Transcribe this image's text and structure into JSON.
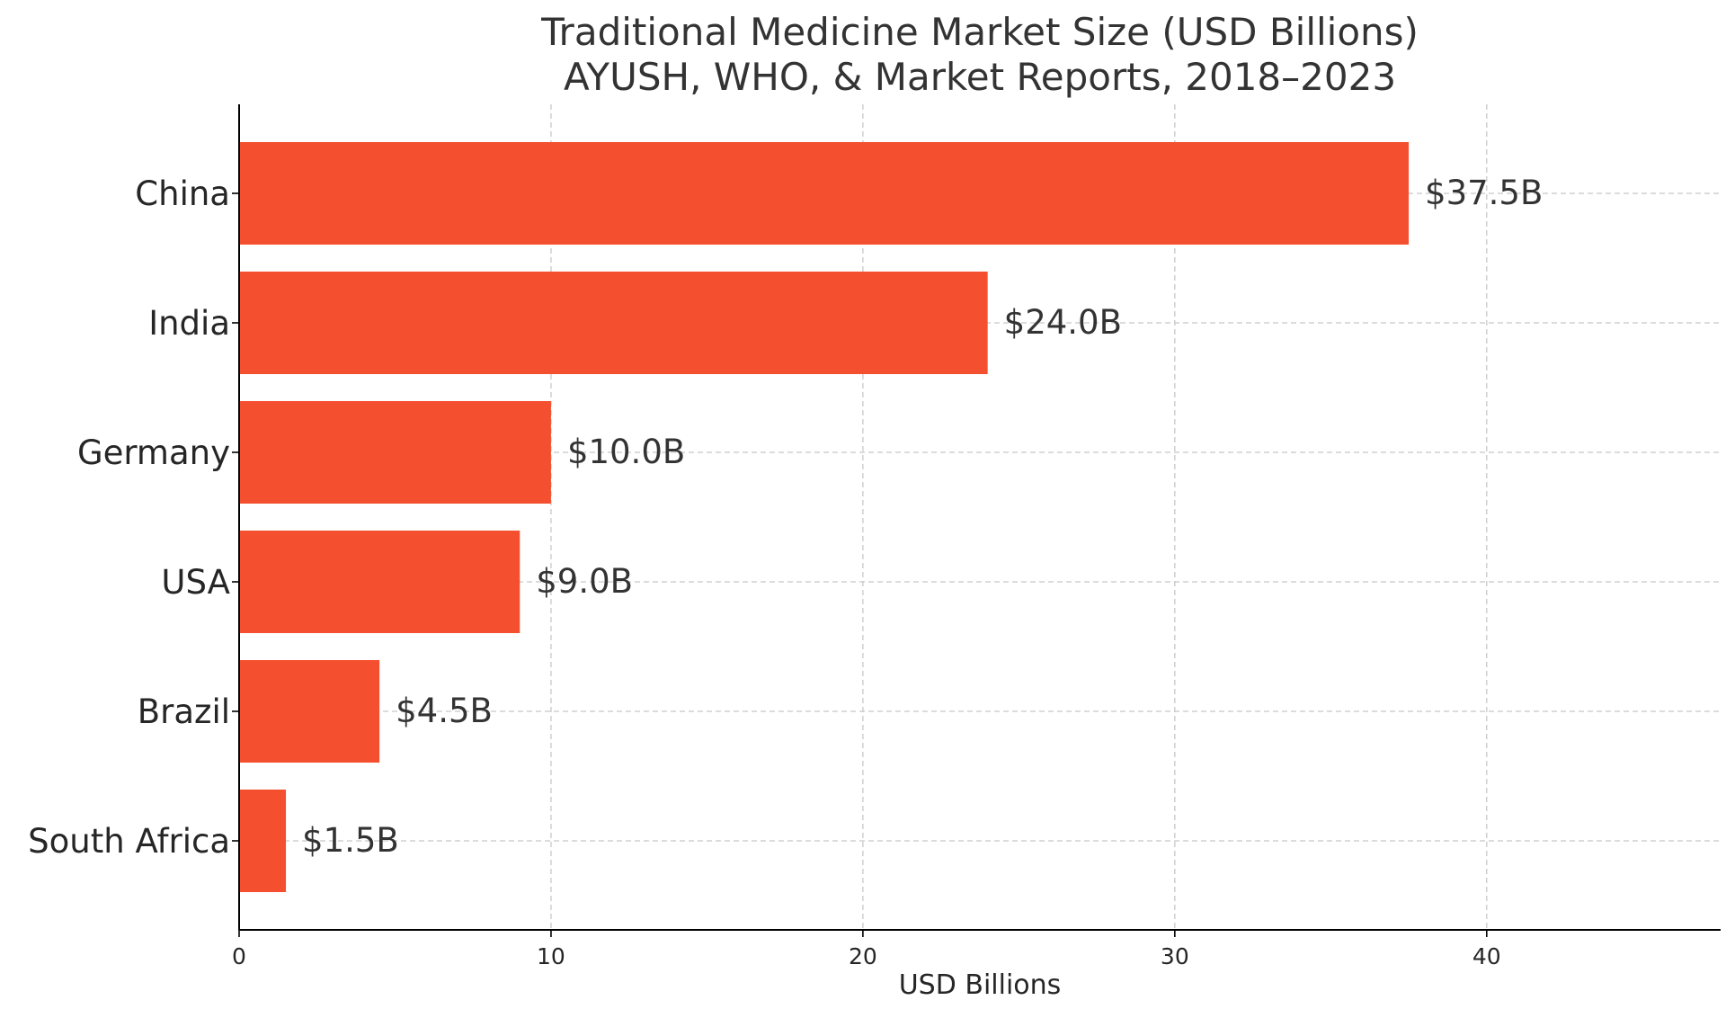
{
  "chart_data": {
    "type": "bar",
    "orientation": "horizontal",
    "title": "Traditional Medicine Market Size (USD Billions)",
    "subtitle": "AYUSH, WHO, & Market Reports, 2018–2023",
    "xlabel": "USD Billions",
    "ylabel": "",
    "categories": [
      "China",
      "India",
      "Germany",
      "USA",
      "Brazil",
      "South Africa"
    ],
    "values": [
      37.5,
      24.0,
      10.0,
      9.0,
      4.5,
      1.5
    ],
    "value_labels": [
      "$37.5B",
      "$24.0B",
      "$10.0B",
      "$9.0B",
      "$4.5B",
      "$1.5B"
    ],
    "xlim": [
      0,
      47.5
    ],
    "xticks": [
      0,
      10,
      20,
      30,
      40
    ],
    "xtick_labels": [
      "0",
      "10",
      "20",
      "30",
      "40"
    ],
    "grid": true,
    "bar_color": "#f4502f"
  }
}
